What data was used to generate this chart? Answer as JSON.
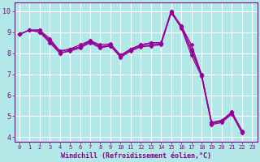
{
  "xlabel": "Windchill (Refroidissement éolien,°C)",
  "xlim": [
    -0.5,
    23.5
  ],
  "ylim": [
    3.8,
    10.4
  ],
  "xticks": [
    0,
    1,
    2,
    3,
    4,
    5,
    6,
    7,
    8,
    9,
    10,
    11,
    12,
    13,
    14,
    15,
    16,
    17,
    18,
    19,
    20,
    21,
    22,
    23
  ],
  "yticks": [
    4,
    5,
    6,
    7,
    8,
    9,
    10
  ],
  "bg_color": "#b2e8e8",
  "grid_color": "#c8e8e8",
  "line_color": "#990099",
  "series": [
    [
      8.9,
      9.1,
      9.1,
      8.7,
      8.1,
      8.2,
      8.3,
      8.6,
      8.3,
      8.4,
      7.9,
      8.2,
      8.4,
      8.5,
      8.5,
      9.9,
      9.3,
      8.4,
      7.0,
      4.7,
      4.8,
      5.2,
      4.3,
      null
    ],
    [
      8.9,
      9.1,
      9.0,
      8.5,
      8.0,
      8.15,
      8.3,
      8.55,
      8.3,
      8.35,
      7.85,
      8.15,
      8.35,
      8.4,
      8.45,
      10.0,
      9.25,
      8.1,
      6.95,
      4.65,
      4.75,
      5.15,
      4.25,
      null
    ],
    [
      8.9,
      9.1,
      9.1,
      8.6,
      8.1,
      8.2,
      8.4,
      8.6,
      8.4,
      8.45,
      7.9,
      8.2,
      8.4,
      8.5,
      8.5,
      10.0,
      9.3,
      8.2,
      7.0,
      4.7,
      4.8,
      5.2,
      4.3,
      null
    ],
    [
      8.9,
      9.1,
      9.0,
      8.6,
      8.0,
      8.1,
      8.25,
      8.5,
      8.25,
      8.35,
      7.8,
      8.1,
      8.3,
      8.35,
      8.4,
      9.95,
      9.2,
      7.9,
      6.9,
      4.6,
      4.7,
      5.1,
      4.2,
      null
    ]
  ],
  "line_width": 0.9,
  "marker": "D",
  "marker_size": 2.5,
  "font_color": "#880088",
  "font_size_x": 5.0,
  "font_size_y": 6.0,
  "font_size_label": 6.0
}
